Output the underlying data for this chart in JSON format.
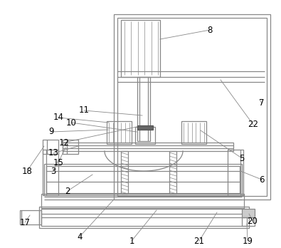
{
  "background_color": "#ffffff",
  "lc": "#888888",
  "lc2": "#aaaaaa",
  "lw": 0.9,
  "lw_thin": 0.5,
  "label_fs": 8.5
}
